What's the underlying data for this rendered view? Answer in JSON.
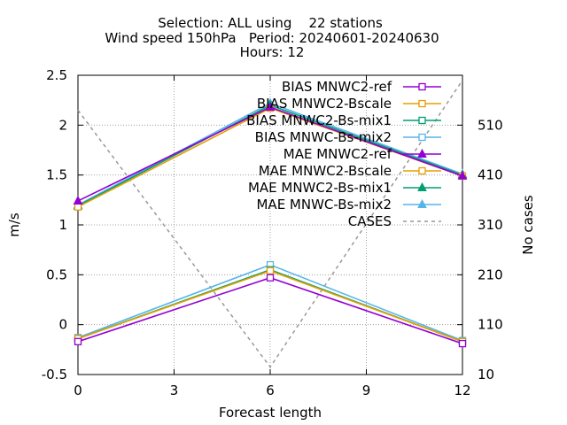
{
  "chart_data": {
    "type": "line",
    "title_lines": [
      "Selection: ALL using    22 stations",
      "Wind speed 150hPa   Period: 20240601-20240630",
      "Hours: 12"
    ],
    "xlabel": "Forecast length",
    "ylabel": "m/s",
    "y2label": "No cases",
    "x": [
      0,
      6,
      12
    ],
    "xticks": [
      0,
      3,
      6,
      9,
      12
    ],
    "xlim": [
      0,
      12
    ],
    "ylim": [
      -0.5,
      2.5
    ],
    "yticks": [
      -0.5,
      0,
      0.5,
      1,
      1.5,
      2,
      2.5
    ],
    "ytick_labels": [
      "-0.5",
      "0",
      "0.5",
      "1",
      "1.5",
      "2",
      "2.5"
    ],
    "y2lim": [
      10,
      610
    ],
    "y2ticks": [
      10,
      110,
      210,
      310,
      410,
      510
    ],
    "grid": true,
    "legend_position": "top-right",
    "series": [
      {
        "name": "BIAS MNWC2-ref",
        "values": [
          -0.17,
          0.47,
          -0.19
        ],
        "color": "#9400d3",
        "marker": "square-open",
        "axis": "y"
      },
      {
        "name": "BIAS MNWC2-Bscale",
        "values": [
          -0.14,
          0.54,
          -0.17
        ],
        "color": "#e69f00",
        "marker": "square-open",
        "axis": "y"
      },
      {
        "name": "BIAS MNWC2-Bs-mix1",
        "values": [
          -0.14,
          0.55,
          -0.17
        ],
        "color": "#009e73",
        "marker": "square-open",
        "axis": "y"
      },
      {
        "name": "BIAS MNWC-Bs-mix2",
        "values": [
          -0.13,
          0.6,
          -0.16
        ],
        "color": "#56b4e9",
        "marker": "square-open",
        "axis": "y"
      },
      {
        "name": "MAE MNWC2-ref",
        "values": [
          1.24,
          2.18,
          1.49
        ],
        "color": "#9400d3",
        "marker": "triangle",
        "axis": "y"
      },
      {
        "name": "MAE MNWC2-Bscale",
        "values": [
          1.18,
          2.17,
          1.49
        ],
        "color": "#e69f00",
        "marker": "square-open",
        "axis": "y"
      },
      {
        "name": "MAE MNWC2-Bs-mix1",
        "values": [
          1.19,
          2.2,
          1.5
        ],
        "color": "#009e73",
        "marker": "triangle",
        "axis": "y"
      },
      {
        "name": "MAE MNWC-Bs-mix2",
        "values": [
          1.2,
          2.22,
          1.51
        ],
        "color": "#56b4e9",
        "marker": "triangle",
        "axis": "y"
      },
      {
        "name": "CASES",
        "values": [
          540,
          25,
          600
        ],
        "color": "#999999",
        "marker": "none",
        "dashed": true,
        "axis": "y2"
      }
    ]
  }
}
